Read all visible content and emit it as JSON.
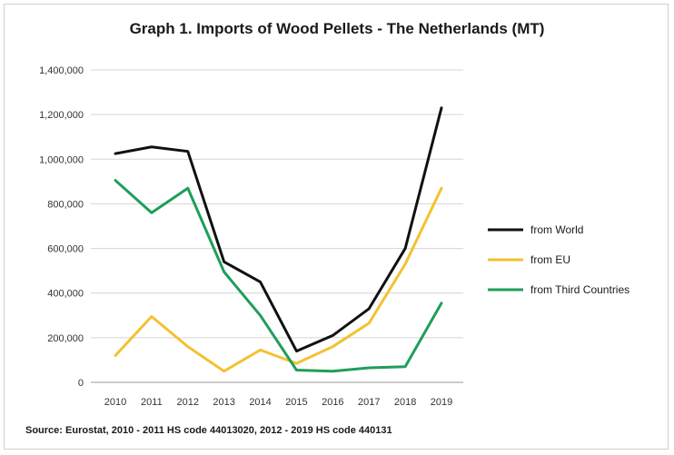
{
  "chart_data": {
    "type": "line",
    "title": "Graph 1. Imports of Wood Pellets - The Netherlands (MT)",
    "xlabel": "",
    "ylabel": "",
    "x": [
      "2010",
      "2011",
      "2012",
      "2013",
      "2014",
      "2015",
      "2016",
      "2017",
      "2018",
      "2019"
    ],
    "ylim": [
      0,
      1400000
    ],
    "yticks": [
      0,
      200000,
      400000,
      600000,
      800000,
      1000000,
      1200000,
      1400000
    ],
    "ytick_labels": [
      "0",
      "200,000",
      "400,000",
      "600,000",
      "800,000",
      "1,000,000",
      "1,200,000",
      "1,400,000"
    ],
    "grid": true,
    "legend_position": "right",
    "series": [
      {
        "name": "from World",
        "color": "#111111",
        "values": [
          1025000,
          1055000,
          1035000,
          540000,
          450000,
          140000,
          210000,
          330000,
          600000,
          1230000
        ]
      },
      {
        "name": "from EU",
        "color": "#f2c230",
        "values": [
          120000,
          295000,
          160000,
          50000,
          145000,
          85000,
          160000,
          265000,
          530000,
          870000
        ]
      },
      {
        "name": "from Third Countries",
        "color": "#1f9e5a",
        "values": [
          905000,
          760000,
          870000,
          495000,
          300000,
          55000,
          50000,
          65000,
          70000,
          355000
        ]
      }
    ],
    "source": "Source: Eurostat, 2010 - 2011 HS code 44013020, 2012 - 2019 HS code 440131"
  }
}
